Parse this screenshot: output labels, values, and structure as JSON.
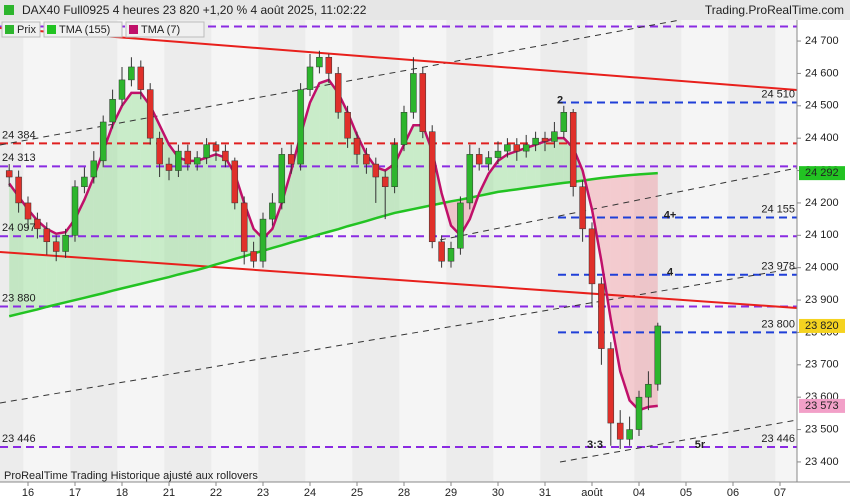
{
  "chart_data": {
    "type": "candlestick",
    "title": "DAX40 Full0925 4 heures 23 820 +1,20 % 4 août 2025, 11:02:22",
    "source": "Trading.ProRealTime.com",
    "footnote": "ProRealTime Trading  Historique ajusté aux rollovers",
    "categories": [
      null,
      null,
      "16",
      null,
      null,
      null,
      null,
      "17",
      null,
      null,
      null,
      null,
      "18",
      null,
      null,
      null,
      null,
      "21",
      null,
      null,
      null,
      null,
      "22",
      null,
      null,
      null,
      null,
      "23",
      null,
      null,
      null,
      null,
      "24",
      null,
      null,
      null,
      null,
      "25",
      null,
      null,
      null,
      null,
      "28",
      null,
      null,
      null,
      null,
      "29",
      null,
      null,
      null,
      null,
      "30",
      null,
      null,
      null,
      null,
      "31",
      null,
      null,
      null,
      null,
      "août",
      null,
      null,
      null,
      null,
      "04",
      null,
      null,
      null,
      null,
      "05",
      null,
      null,
      null,
      null,
      "06",
      null,
      null,
      null,
      null,
      "07"
    ],
    "series": [
      {
        "name": "Prix",
        "color": "#2db52d",
        "down_color": "#e0302a",
        "open": [
          24300,
          24280,
          24200,
          24150,
          24120,
          24080,
          24050,
          24100,
          24250,
          24280,
          24330,
          24450,
          24520,
          24580,
          24620,
          24550,
          24400,
          24320,
          24300,
          24360,
          24320,
          24340,
          24380,
          24360,
          24330,
          24200,
          24050,
          24020,
          24150,
          24200,
          24350,
          24320,
          24550,
          24620,
          24650,
          24600,
          24480,
          24400,
          24350,
          24320,
          24280,
          24250,
          24380,
          24480,
          24600,
          24420,
          24080,
          24020,
          24060,
          24200,
          24350,
          24320,
          24340,
          24360,
          24380,
          24360,
          24380,
          24400,
          24390,
          24420,
          24480,
          24250,
          24120,
          23950,
          23750,
          23520,
          23470,
          23500,
          23600,
          23640,
          null,
          null,
          null,
          null,
          null,
          null,
          null,
          null,
          null,
          null,
          null,
          null,
          null
        ],
        "high": [
          24320,
          24300,
          24220,
          24170,
          24140,
          24100,
          24120,
          24270,
          24310,
          24360,
          24470,
          24550,
          24620,
          24650,
          24640,
          24570,
          24420,
          24340,
          24380,
          24380,
          24360,
          24400,
          24390,
          24380,
          24340,
          24220,
          24080,
          24170,
          24230,
          24370,
          24380,
          24570,
          24660,
          24670,
          24660,
          24620,
          24500,
          24420,
          24370,
          24340,
          24300,
          24400,
          24500,
          24650,
          24620,
          24440,
          24100,
          24080,
          24220,
          24380,
          24370,
          24360,
          24390,
          24400,
          24400,
          24410,
          24420,
          24420,
          24450,
          24500,
          24490,
          24270,
          24140,
          23970,
          23770,
          23560,
          23540,
          23620,
          23680,
          23830,
          null,
          null,
          null,
          null,
          null,
          null,
          null,
          null,
          null,
          null,
          null,
          null,
          null
        ],
        "low": [
          24250,
          24170,
          24120,
          24090,
          24040,
          24020,
          24030,
          24080,
          24230,
          24260,
          24310,
          24430,
          24500,
          24560,
          24520,
          24380,
          24280,
          24270,
          24280,
          24300,
          24300,
          24320,
          24330,
          24310,
          24180,
          24010,
          24000,
          24000,
          24130,
          24180,
          24290,
          24300,
          24530,
          24600,
          24570,
          24460,
          24370,
          24320,
          24290,
          24200,
          24150,
          24230,
          24360,
          24460,
          24400,
          24060,
          24000,
          24000,
          24040,
          24180,
          24300,
          24300,
          24320,
          24340,
          24330,
          24340,
          24360,
          24360,
          24370,
          24400,
          24220,
          24080,
          23880,
          23700,
          23450,
          23440,
          23450,
          23480,
          23560,
          23620,
          null,
          null,
          null,
          null,
          null,
          null,
          null,
          null,
          null,
          null,
          null,
          null,
          null
        ],
        "close": [
          24280,
          24200,
          24150,
          24120,
          24080,
          24050,
          24100,
          24250,
          24280,
          24330,
          24450,
          24520,
          24580,
          24620,
          24550,
          24400,
          24320,
          24300,
          24360,
          24320,
          24340,
          24380,
          24360,
          24330,
          24200,
          24050,
          24020,
          24150,
          24200,
          24350,
          24320,
          24550,
          24620,
          24650,
          24600,
          24480,
          24400,
          24350,
          24320,
          24280,
          24250,
          24380,
          24480,
          24600,
          24420,
          24080,
          24020,
          24060,
          24200,
          24350,
          24320,
          24340,
          24360,
          24380,
          24360,
          24380,
          24400,
          24390,
          24420,
          24480,
          24250,
          24120,
          23950,
          23750,
          23520,
          23470,
          23500,
          23600,
          23640,
          23820,
          null,
          null,
          null,
          null,
          null,
          null,
          null,
          null,
          null,
          null,
          null,
          null,
          null
        ]
      },
      {
        "name": "TMA (155)",
        "color": "#22c322",
        "values": [
          23850,
          23857,
          23864,
          23871,
          23879,
          23886,
          23893,
          23900,
          23907,
          23914,
          23921,
          23929,
          23936,
          23943,
          23950,
          23957,
          23964,
          23971,
          23979,
          23986,
          23993,
          24001,
          24010,
          24018,
          24027,
          24035,
          24044,
          24052,
          24061,
          24069,
          24078,
          24086,
          24094,
          24103,
          24111,
          24119,
          24128,
          24136,
          24144,
          24153,
          24161,
          24169,
          24175,
          24181,
          24187,
          24193,
          24199,
          24205,
          24210,
          24216,
          24222,
          24228,
          24234,
          24238,
          24242,
          24246,
          24250,
          24254,
          24258,
          24262,
          24265,
          24269,
          24273,
          24277,
          24280,
          24283,
          24286,
          24288,
          24290,
          24292,
          null,
          null,
          null,
          null,
          null,
          null,
          null,
          null,
          null,
          null,
          null,
          null,
          null
        ]
      },
      {
        "name": "TMA (7)",
        "color": "#c0106a",
        "values": [
          24260,
          24220,
          24180,
          24145,
          24120,
          24105,
          24110,
          24150,
          24210,
          24280,
          24360,
          24440,
          24500,
          24540,
          24540,
          24500,
          24440,
          24380,
          24340,
          24330,
          24330,
          24340,
          24350,
          24340,
          24290,
          24200,
          24120,
          24090,
          24120,
          24200,
          24300,
          24410,
          24510,
          24570,
          24580,
          24540,
          24480,
          24410,
          24350,
          24310,
          24300,
          24320,
          24380,
          24440,
          24440,
          24360,
          24230,
          24130,
          24100,
          24150,
          24230,
          24290,
          24330,
          24350,
          24360,
          24370,
          24380,
          24390,
          24400,
          24400,
          24370,
          24300,
          24180,
          24020,
          23840,
          23680,
          23590,
          23560,
          23570,
          23573,
          null,
          null,
          null,
          null,
          null,
          null,
          null,
          null,
          null,
          null,
          null,
          null,
          null
        ]
      }
    ],
    "ylim": [
      23338,
      24765
    ],
    "yticks": [
      {
        "value": 23400,
        "label": "23 400"
      },
      {
        "value": 23500,
        "label": "23 500"
      },
      {
        "value": 23600,
        "label": "23 600"
      },
      {
        "value": 23700,
        "label": "23 700"
      },
      {
        "value": 23800,
        "label": "23 800"
      },
      {
        "value": 23900,
        "label": "23 900"
      },
      {
        "value": 24000,
        "label": "24 000"
      },
      {
        "value": 24100,
        "label": "24 100"
      },
      {
        "value": 24200,
        "label": "24 200"
      },
      {
        "value": 24300,
        "label": "24 300"
      },
      {
        "value": 24400,
        "label": "24 400"
      },
      {
        "value": 24500,
        "label": "24 500"
      },
      {
        "value": 24600,
        "label": "24 600"
      },
      {
        "value": 24700,
        "label": "24 700"
      }
    ],
    "grid": false,
    "levels": [
      {
        "value": 24745,
        "color": "#8a2be2"
      },
      {
        "value": 24510,
        "color": "#1f3fd8",
        "label_right": "24 510",
        "annotations": [
          {
            "text": "2",
            "color": "#1f3fd8"
          }
        ]
      },
      {
        "value": 24384,
        "color": "#e02020",
        "label_left": "24 384"
      },
      {
        "value": 24313,
        "color": "#8a2be2",
        "label_left": "24 313"
      },
      {
        "value": 24155,
        "color": "#1f3fd8",
        "label_right": "24 155",
        "annotations": [
          {
            "text": "4+",
            "color": "#1f3fd8"
          }
        ]
      },
      {
        "value": 24097,
        "color": "#8a2be2",
        "label_left": "24 097"
      },
      {
        "value": 23978,
        "color": "#1f3fd8",
        "label_right": "23 978",
        "annotations": [
          {
            "text": "4",
            "color": "#1f3fd8"
          }
        ]
      },
      {
        "value": 23880,
        "color": "#8a2be2",
        "label_left": "23 880"
      },
      {
        "value": 23800,
        "color": "#1f3fd8",
        "label_right": "23 800"
      },
      {
        "value": 23446,
        "color": "#8a2be2",
        "label_left": "23 446",
        "label_right": "23 446",
        "annotations": [
          {
            "text": "3:3",
            "color": "#8a2be2"
          },
          {
            "text": "5r",
            "color": "#1f3fd8"
          }
        ]
      }
    ],
    "tags": [
      {
        "value": 24292,
        "label": "24 292",
        "color": "#22c322"
      },
      {
        "value": 23820,
        "label": "23 820",
        "color": "#f5d320"
      },
      {
        "value": 23573,
        "label": "23 573",
        "color": "#f2a0c8"
      }
    ]
  }
}
